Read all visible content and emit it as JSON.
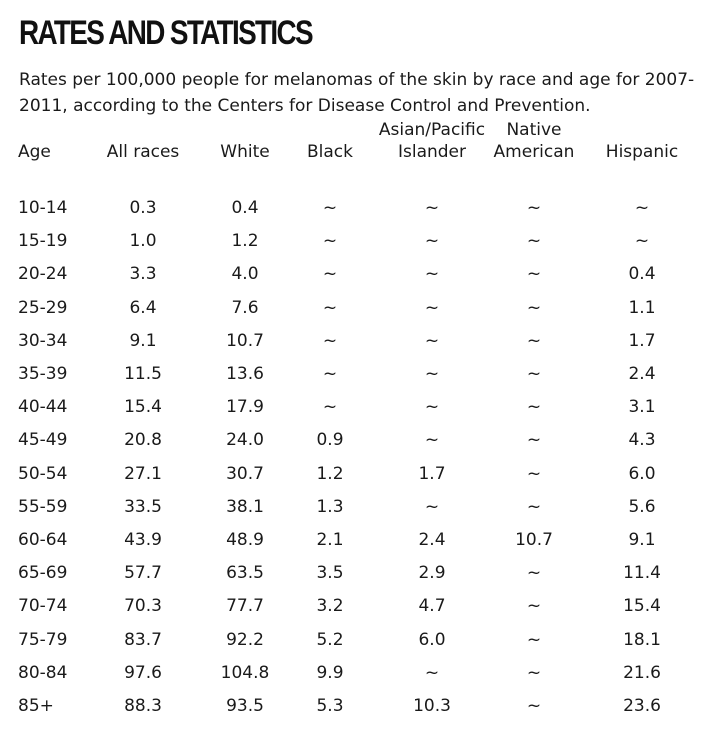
{
  "title": "RATES AND STATISTICS",
  "subtitle": "Rates per 100,000 people for melanomas of the skin by race and age for 2007-2011, according to the Centers for Disease Control and Prevention.",
  "chart_data": {
    "type": "table",
    "columns": [
      "Age",
      "All races",
      "White",
      "Black",
      "Asian/Pacific Islander",
      "Native American",
      "Hispanic"
    ],
    "header_lines": [
      [
        "Age"
      ],
      [
        "All races"
      ],
      [
        "White"
      ],
      [
        "Black"
      ],
      [
        "Asian/Pacific",
        "Islander"
      ],
      [
        "Native",
        "American"
      ],
      [
        "Hispanic"
      ]
    ],
    "rows": [
      [
        "10-14",
        "0.3",
        "0.4",
        "~",
        "~",
        "~",
        "~"
      ],
      [
        "15-19",
        "1.0",
        "1.2",
        "~",
        "~",
        "~",
        "~"
      ],
      [
        "20-24",
        "3.3",
        "4.0",
        "~",
        "~",
        "~",
        "0.4"
      ],
      [
        "25-29",
        "6.4",
        "7.6",
        "~",
        "~",
        "~",
        "1.1"
      ],
      [
        "30-34",
        "9.1",
        "10.7",
        "~",
        "~",
        "~",
        "1.7"
      ],
      [
        "35-39",
        "11.5",
        "13.6",
        "~",
        "~",
        "~",
        "2.4"
      ],
      [
        "40-44",
        "15.4",
        "17.9",
        "~",
        "~",
        "~",
        "3.1"
      ],
      [
        "45-49",
        "20.8",
        "24.0",
        "0.9",
        "~",
        "~",
        "4.3"
      ],
      [
        "50-54",
        "27.1",
        "30.7",
        "1.2",
        "1.7",
        "~",
        "6.0"
      ],
      [
        "55-59",
        "33.5",
        "38.1",
        "1.3",
        "~",
        "~",
        "5.6"
      ],
      [
        "60-64",
        "43.9",
        "48.9",
        "2.1",
        "2.4",
        "10.7",
        "9.1"
      ],
      [
        "65-69",
        "57.7",
        "63.5",
        "3.5",
        "2.9",
        "~",
        "11.4"
      ],
      [
        "70-74",
        "70.3",
        "77.7",
        "3.2",
        "4.7",
        "~",
        "15.4"
      ],
      [
        "75-79",
        "83.7",
        "92.2",
        "5.2",
        "6.0",
        "~",
        "18.1"
      ],
      [
        "80-84",
        "97.6",
        "104.8",
        "9.9",
        "~",
        "~",
        "21.6"
      ],
      [
        "85+",
        "88.3",
        "93.5",
        "5.3",
        "10.3",
        "~",
        "23.6"
      ]
    ]
  }
}
